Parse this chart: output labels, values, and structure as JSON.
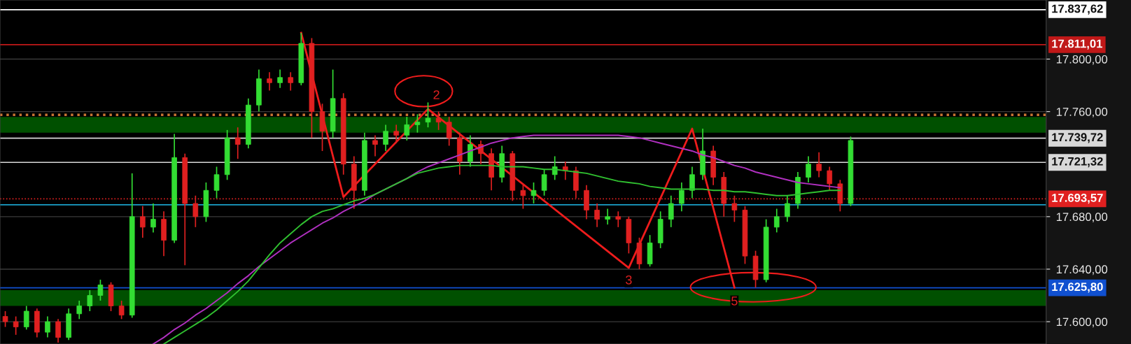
{
  "chart_data": {
    "type": "candlestick",
    "categories": [
      null,
      null,
      null,
      null,
      null,
      null,
      null,
      null,
      null,
      null,
      null,
      null,
      null,
      null,
      null,
      null,
      null,
      null,
      null,
      null,
      null,
      null,
      null,
      null,
      null,
      null,
      null,
      null,
      null,
      null,
      null,
      null,
      null,
      null,
      null,
      null,
      null,
      null,
      null,
      null,
      null,
      null,
      null,
      null,
      null,
      null,
      null,
      null,
      null,
      null,
      null,
      null,
      null,
      null,
      null,
      null,
      null,
      null,
      null,
      null,
      null,
      null,
      null,
      null,
      null,
      null,
      null,
      null,
      null,
      null,
      null,
      null,
      null,
      null,
      null,
      null,
      null,
      null,
      null,
      null,
      null,
      null,
      null,
      null,
      null,
      null,
      null,
      null,
      null,
      null,
      null,
      null,
      null,
      null,
      null,
      null,
      null,
      null,
      null
    ],
    "ohlc": [
      [
        17604,
        17608,
        17596,
        17600
      ],
      [
        17600,
        17604,
        17590,
        17596
      ],
      [
        17596,
        17612,
        17594,
        17608
      ],
      [
        17608,
        17610,
        17588,
        17592
      ],
      [
        17592,
        17604,
        17588,
        17600
      ],
      [
        17600,
        17602,
        17584,
        17588
      ],
      [
        17588,
        17610,
        17586,
        17606
      ],
      [
        17606,
        17616,
        17602,
        17612
      ],
      [
        17612,
        17624,
        17608,
        17620
      ],
      [
        17620,
        17632,
        17616,
        17628
      ],
      [
        17628,
        17630,
        17608,
        17612
      ],
      [
        17612,
        17616,
        17602,
        17605
      ],
      [
        17605,
        17713,
        17603,
        17680
      ],
      [
        17680,
        17688,
        17664,
        17672
      ],
      [
        17672,
        17690,
        17668,
        17678
      ],
      [
        17678,
        17684,
        17650,
        17662
      ],
      [
        17662,
        17743,
        17660,
        17725
      ],
      [
        17725,
        17728,
        17643,
        17690
      ],
      [
        17690,
        17696,
        17672,
        17680
      ],
      [
        17680,
        17706,
        17676,
        17700
      ],
      [
        17700,
        17718,
        17694,
        17712
      ],
      [
        17712,
        17746,
        17708,
        17740
      ],
      [
        17740,
        17748,
        17724,
        17735
      ],
      [
        17735,
        17770,
        17732,
        17765
      ],
      [
        17765,
        17792,
        17760,
        17785
      ],
      [
        17785,
        17790,
        17776,
        17782
      ],
      [
        17782,
        17792,
        17778,
        17786
      ],
      [
        17786,
        17790,
        17776,
        17782
      ],
      [
        17782,
        17820,
        17780,
        17812
      ],
      [
        17812,
        17816,
        17740,
        17760
      ],
      [
        17760,
        17766,
        17730,
        17745
      ],
      [
        17745,
        17792,
        17740,
        17770
      ],
      [
        17770,
        17774,
        17712,
        17720
      ],
      [
        17720,
        17726,
        17686,
        17700
      ],
      [
        17700,
        17744,
        17696,
        17738
      ],
      [
        17738,
        17742,
        17726,
        17735
      ],
      [
        17735,
        17750,
        17730,
        17745
      ],
      [
        17745,
        17750,
        17736,
        17742
      ],
      [
        17742,
        17756,
        17738,
        17750
      ],
      [
        17750,
        17758,
        17744,
        17752
      ],
      [
        17752,
        17767,
        17748,
        17755
      ],
      [
        17755,
        17760,
        17746,
        17752
      ],
      [
        17752,
        17756,
        17734,
        17740
      ],
      [
        17740,
        17744,
        17712,
        17722
      ],
      [
        17722,
        17742,
        17718,
        17735
      ],
      [
        17735,
        17738,
        17720,
        17728
      ],
      [
        17728,
        17732,
        17700,
        17710
      ],
      [
        17710,
        17734,
        17706,
        17728
      ],
      [
        17728,
        17730,
        17692,
        17700
      ],
      [
        17700,
        17704,
        17686,
        17696
      ],
      [
        17696,
        17706,
        17690,
        17700
      ],
      [
        17700,
        17716,
        17696,
        17712
      ],
      [
        17712,
        17726,
        17708,
        17718
      ],
      [
        17718,
        17722,
        17708,
        17715
      ],
      [
        17715,
        17718,
        17694,
        17700
      ],
      [
        17700,
        17704,
        17678,
        17685
      ],
      [
        17685,
        17690,
        17672,
        17678
      ],
      [
        17678,
        17686,
        17674,
        17680
      ],
      [
        17680,
        17684,
        17672,
        17678
      ],
      [
        17678,
        17680,
        17652,
        17660
      ],
      [
        17660,
        17664,
        17640,
        17644
      ],
      [
        17644,
        17666,
        17642,
        17660
      ],
      [
        17660,
        17684,
        17656,
        17678
      ],
      [
        17678,
        17696,
        17672,
        17690
      ],
      [
        17690,
        17706,
        17684,
        17700
      ],
      [
        17700,
        17718,
        17694,
        17712
      ],
      [
        17712,
        17747,
        17708,
        17730
      ],
      [
        17730,
        17734,
        17704,
        17710
      ],
      [
        17710,
        17714,
        17680,
        17690
      ],
      [
        17690,
        17696,
        17676,
        17685
      ],
      [
        17685,
        17688,
        17644,
        17650
      ],
      [
        17650,
        17654,
        17626,
        17632
      ],
      [
        17632,
        17678,
        17630,
        17672
      ],
      [
        17672,
        17686,
        17668,
        17680
      ],
      [
        17680,
        17696,
        17676,
        17690
      ],
      [
        17690,
        17714,
        17686,
        17710
      ],
      [
        17710,
        17726,
        17706,
        17720
      ],
      [
        17720,
        17729,
        17710,
        17715
      ],
      [
        17715,
        17718,
        17700,
        17705
      ],
      [
        17705,
        17708,
        17684,
        17690
      ],
      [
        17690,
        17741,
        17688,
        17738
      ],
      null,
      null,
      null,
      null,
      null,
      null,
      null,
      null,
      null,
      null,
      null,
      null,
      null,
      null,
      null,
      null,
      null,
      null
    ],
    "colors": [
      "#e02020",
      "#e02020",
      "#33dd33",
      "#e02020",
      "#33dd33",
      "#e02020",
      "#33dd33",
      "#33dd33",
      "#33dd33",
      "#33dd33",
      "#e02020",
      "#e02020",
      "#33dd33",
      "#e02020",
      "#33dd33",
      "#e02020",
      "#33dd33",
      "#e02020",
      "#e02020",
      "#33dd33",
      "#33dd33",
      "#33dd33",
      "#e02020",
      "#33dd33",
      "#33dd33",
      "#e02020",
      "#33dd33",
      "#e02020",
      "#33dd33",
      "#e02020",
      "#e02020",
      "#33dd33",
      "#e02020",
      "#e02020",
      "#33dd33",
      "#e02020",
      "#33dd33",
      "#e02020",
      "#33dd33",
      "#33dd33",
      "#33dd33",
      "#e02020",
      "#e02020",
      "#e02020",
      "#33dd33",
      "#e02020",
      "#e02020",
      "#33dd33",
      "#e02020",
      "#e02020",
      "#33dd33",
      "#33dd33",
      "#33dd33",
      "#e02020",
      "#e02020",
      "#e02020",
      "#e02020",
      "#33dd33",
      "#e02020",
      "#e02020",
      "#e02020",
      "#33dd33",
      "#33dd33",
      "#33dd33",
      "#33dd33",
      "#33dd33",
      "#33dd33",
      "#e02020",
      "#e02020",
      "#e02020",
      "#e02020",
      "#e02020",
      "#33dd33",
      "#33dd33",
      "#33dd33",
      "#33dd33",
      "#33dd33",
      "#e02020",
      "#e02020",
      "#e02020",
      "#33dd33",
      null,
      null,
      null,
      null,
      null,
      null,
      null,
      null,
      null,
      null,
      null,
      null,
      null,
      null,
      null,
      null,
      null,
      null
    ],
    "series": [
      {
        "type": "line",
        "color": "#b030c0",
        "values": [
          null,
          null,
          null,
          null,
          null,
          null,
          null,
          null,
          null,
          null,
          null,
          null,
          null,
          null,
          17583,
          17588,
          17594,
          17599,
          17605,
          17610,
          17616,
          17622,
          17629,
          17635,
          17642,
          17648,
          17654,
          17660,
          17665,
          17670,
          17675,
          17679,
          17684,
          17688,
          17692,
          17697,
          17701,
          17705,
          17709,
          17714,
          17718,
          17721,
          17724,
          17727,
          17730,
          17733,
          17736,
          17738,
          17740,
          17741,
          17742,
          17742,
          17742,
          17742,
          17742,
          17742,
          17742,
          17742,
          17742,
          17741,
          17740,
          17738,
          17736,
          17734,
          17732,
          17730,
          17727,
          17725,
          17722,
          17719,
          17717,
          17714,
          17712,
          17710,
          17708,
          17706,
          17705,
          17704,
          17703,
          17702,
          null,
          null,
          null,
          null,
          null,
          null,
          null,
          null,
          null,
          null,
          null,
          null,
          null,
          null,
          null,
          null,
          null,
          null,
          null
        ]
      },
      {
        "type": "line",
        "color": "#30c030",
        "values": [
          null,
          null,
          null,
          null,
          null,
          null,
          null,
          null,
          null,
          null,
          null,
          null,
          null,
          null,
          null,
          17583,
          17588,
          17593,
          17598,
          17603,
          17609,
          17616,
          17623,
          17631,
          17641,
          17651,
          17660,
          17667,
          17674,
          17680,
          17684,
          17686,
          17689,
          17692,
          17694,
          17697,
          17701,
          17705,
          17709,
          17713,
          17715,
          17717,
          17718,
          17719,
          17719,
          17719,
          17719,
          17718,
          17718,
          17718,
          17717,
          17716,
          17716,
          17715,
          17714,
          17713,
          17711,
          17709,
          17707,
          17706,
          17705,
          17703,
          17702,
          17701,
          17701,
          17701,
          17701,
          17700,
          17700,
          17699,
          17699,
          17698,
          17697,
          17696,
          17696,
          17697,
          17698,
          17699,
          17700,
          17700,
          null,
          null,
          null,
          null,
          null,
          null,
          null,
          null,
          null,
          null,
          null,
          null,
          null,
          null,
          null,
          null,
          null,
          null,
          null
        ]
      },
      {
        "type": "line",
        "color": "#ee1c1c",
        "values": [
          null,
          null,
          null,
          null,
          null,
          null,
          null,
          null,
          null,
          null,
          null,
          null,
          null,
          null,
          null,
          null,
          null,
          null,
          null,
          null,
          null,
          null,
          null,
          null,
          null,
          null,
          null,
          null,
          17820,
          null,
          null,
          null,
          17695,
          null,
          null,
          null,
          null,
          null,
          null,
          null,
          17762,
          null,
          null,
          null,
          null,
          null,
          null,
          null,
          null,
          null,
          null,
          null,
          null,
          null,
          null,
          null,
          null,
          null,
          null,
          17641,
          null,
          null,
          null,
          null,
          null,
          17747,
          null,
          null,
          null,
          17626,
          null,
          null,
          null,
          null,
          null,
          null,
          null,
          null,
          null,
          null,
          null,
          null,
          null,
          null,
          null,
          null,
          null,
          null,
          null,
          null,
          null,
          null,
          null,
          null,
          null,
          null,
          null,
          null,
          null
        ]
      }
    ],
    "ylim": [
      17583,
      17845
    ],
    "yticks": [
      {
        "value": 17600,
        "label": "17.600,00"
      },
      {
        "value": 17640,
        "label": "17.640,00"
      },
      {
        "value": 17680,
        "label": "17.680,00"
      },
      {
        "value": 17760,
        "label": "17.760,00"
      },
      {
        "value": 17800,
        "label": "17.800,00"
      }
    ],
    "tick_labels": "y",
    "grid": "y",
    "ref_lines": [
      {
        "axis": "y",
        "value": 17837.62,
        "label": "17.837,62",
        "color": "#ffffff"
      },
      {
        "axis": "y",
        "value": 17811.01,
        "label": "17.811,01",
        "color": "#c01818"
      },
      {
        "axis": "y",
        "value": 17757.5,
        "color": "#c87533",
        "line_style": "dotted"
      },
      {
        "axis": "y",
        "value": 17739.72,
        "label": "17.739,72",
        "color": "#d8d8d8"
      },
      {
        "axis": "y",
        "value": 17721.32,
        "label": "17.721,32",
        "color": "#d8d8d8"
      },
      {
        "axis": "y",
        "value": 17693.57,
        "label": "17.693,57",
        "color": "#e02020",
        "line_style": "dotted"
      },
      {
        "axis": "y",
        "value": 17689,
        "color": "#1aa0c8"
      },
      {
        "axis": "y",
        "value": 17625.8,
        "label": "17.625,80",
        "color": "#1050d0"
      }
    ],
    "bands": [
      {
        "axis": "y",
        "from": 17744,
        "to": 17756,
        "color": "#005000"
      },
      {
        "axis": "y",
        "from": 17612,
        "to": 17624,
        "color": "#005000"
      }
    ],
    "annotations": [
      "2",
      "3",
      "5"
    ]
  }
}
